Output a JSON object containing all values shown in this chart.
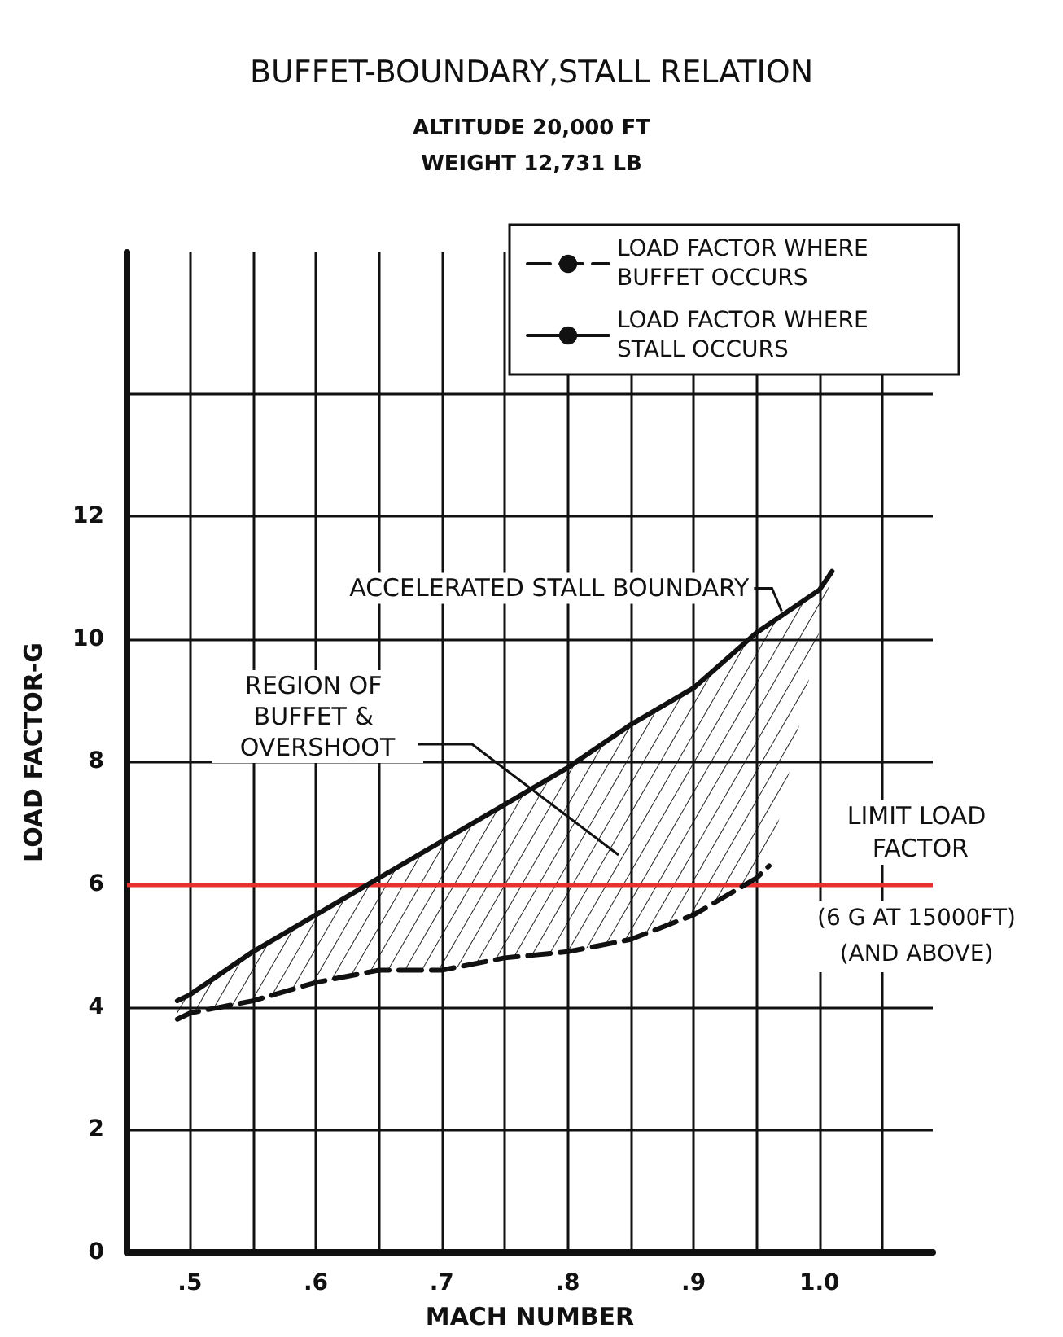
{
  "chart_data": {
    "type": "line",
    "title": "BUFFET-BOUNDARY,STALL RELATION",
    "subtitle": "ALTITUDE 20,000 FT\nWEIGHT 12,731 LB",
    "xlabel": "MACH NUMBER",
    "ylabel": "LOAD FACTOR-G",
    "series": [
      {
        "name": "LOAD FACTOR WHERE BUFFET OCCURS",
        "color": "#111111",
        "line_style": "dashed",
        "x": [
          0.49,
          0.5,
          0.55,
          0.6,
          0.65,
          0.7,
          0.75,
          0.8,
          0.85,
          0.9,
          0.95,
          0.96
        ],
        "values": [
          3.8,
          3.9,
          4.1,
          4.4,
          4.6,
          4.6,
          4.8,
          4.9,
          5.1,
          5.5,
          6.1,
          6.3
        ]
      },
      {
        "name": "LOAD FACTOR WHERE STALL OCCURS",
        "color": "#111111",
        "line_style": "solid",
        "x": [
          0.49,
          0.5,
          0.55,
          0.6,
          0.65,
          0.7,
          0.75,
          0.8,
          0.85,
          0.9,
          0.95,
          1.0,
          1.01
        ],
        "values": [
          4.1,
          4.2,
          4.9,
          5.5,
          6.1,
          6.7,
          7.3,
          7.9,
          8.6,
          9.2,
          10.1,
          10.8,
          11.1
        ]
      }
    ],
    "xlim": [
      0.45,
      1.09
    ],
    "xticks": [
      {
        "value": 0.5,
        "label": ".5"
      },
      {
        "value": 0.55,
        "label": null
      },
      {
        "value": 0.6,
        "label": ".6"
      },
      {
        "value": 0.65,
        "label": null
      },
      {
        "value": 0.7,
        "label": ".7"
      },
      {
        "value": 0.75,
        "label": null
      },
      {
        "value": 0.8,
        "label": ".8"
      },
      {
        "value": 0.85,
        "label": null
      },
      {
        "value": 0.9,
        "label": ".9"
      },
      {
        "value": 0.95,
        "label": null
      },
      {
        "value": 1.0,
        "label": "1.0"
      },
      {
        "value": 1.05,
        "label": null
      }
    ],
    "ylim": [
      0,
      16.3
    ],
    "yticks": [
      0,
      2,
      4,
      6,
      8,
      10,
      12,
      {
        "value": 14,
        "label": null
      }
    ],
    "grid": true,
    "legend": "top right",
    "marker": "none",
    "ref_lines": [
      {
        "axis": "y",
        "value": 6,
        "label": "LIMIT LOAD FACTOR\n(6 G AT 15000FT)\n(AND ABOVE)",
        "color": "#e8312f",
        "line_style": "solid"
      }
    ],
    "annotations": [
      {
        "text": "ACCELERATED STALL BOUNDARY",
        "x": 0.97,
        "y": 10.4
      },
      "REGION OF BUFFET & OVERSHOOT"
    ]
  }
}
